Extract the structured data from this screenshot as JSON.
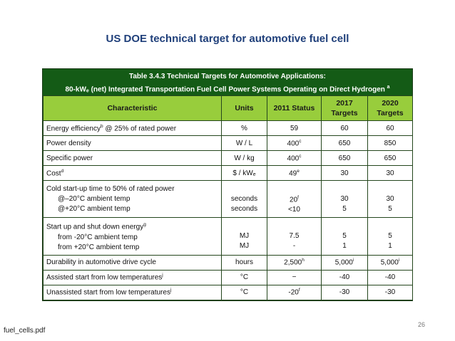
{
  "slide": {
    "title": "US DOE technical target for automotive fuel cell",
    "page_number": "26",
    "source_file": "fuel_cells.pdf"
  },
  "table": {
    "caption_line1": "Table 3.4.3 Technical Targets for Automotive Applications:",
    "caption_line2_a": "80-kW",
    "caption_line2_sub": "e",
    "caption_line2_b": " (net) Integrated Transportation Fuel Cell Power Systems Operating on Direct Hydrogen",
    "caption_line2_sup": "a",
    "headers": {
      "characteristic": "Characteristic",
      "units": "Units",
      "status_2011": "2011 Status",
      "targets_2017_line1": "2017",
      "targets_2017_line2": "Targets",
      "targets_2020_line1": "2020",
      "targets_2020_line2": "Targets"
    },
    "rows": [
      {
        "char": "Energy efficiency",
        "char_sup": "b",
        "char_tail": " @ 25% of rated power",
        "units": "%",
        "status": "59",
        "status_sup": "",
        "t2017": "60",
        "t2017_sup": "",
        "t2020": "60",
        "t2020_sup": ""
      },
      {
        "char": "Power density",
        "char_sup": "",
        "char_tail": "",
        "units": "W / L",
        "status": "400",
        "status_sup": "c",
        "t2017": "650",
        "t2017_sup": "",
        "t2020": "850",
        "t2020_sup": ""
      },
      {
        "char": "Specific power",
        "char_sup": "",
        "char_tail": "",
        "units": "W / kg",
        "status": "400",
        "status_sup": "c",
        "t2017": "650",
        "t2017_sup": "",
        "t2020": "650",
        "t2020_sup": ""
      },
      {
        "char": "Cost",
        "char_sup": "d",
        "char_tail": "",
        "units": "$ / kW",
        "units_sub": "e",
        "status": "49",
        "status_sup": "e",
        "t2017": "30",
        "t2017_sup": "",
        "t2020": "30",
        "t2020_sup": ""
      }
    ],
    "cold_start": {
      "label": "Cold start-up time to 50% of rated power",
      "sub1": "@–20°C ambient temp",
      "sub2": "@+20°C ambient temp",
      "units1": "seconds",
      "units2": "seconds",
      "status1": "20",
      "status1_sup": "f",
      "status2": "<10",
      "t2017_1": "30",
      "t2017_2": "5",
      "t2020_1": "30",
      "t2020_2": "5"
    },
    "start_stop": {
      "label": "Start up and shut down energy",
      "label_sup": "g",
      "sub1": "from -20°C ambient temp",
      "sub2": "from +20°C ambient temp",
      "units1": "MJ",
      "units2": "MJ",
      "status1": "7.5",
      "status2": "-",
      "t2017_1": "5",
      "t2017_2": "1",
      "t2020_1": "5",
      "t2020_2": "1"
    },
    "tail_rows": [
      {
        "char": "Durability in automotive drive cycle",
        "char_sup": "",
        "units": "hours",
        "status": "2,500",
        "status_sup": "h",
        "t2017": "5,000",
        "t2017_sup": "i",
        "t2020": "5,000",
        "t2020_sup": "i"
      },
      {
        "char": "Assisted start from low temperatures",
        "char_sup": "j",
        "units": "°C",
        "status": "−",
        "status_sup": "",
        "t2017": "-40",
        "t2017_sup": "",
        "t2020": "-40",
        "t2020_sup": ""
      },
      {
        "char": "Unassisted start from low temperatures",
        "char_sup": "j",
        "units": "°C",
        "status": "-20",
        "status_sup": "f",
        "t2017": "-30",
        "t2017_sup": "",
        "t2020": "-30",
        "t2020_sup": ""
      }
    ]
  }
}
